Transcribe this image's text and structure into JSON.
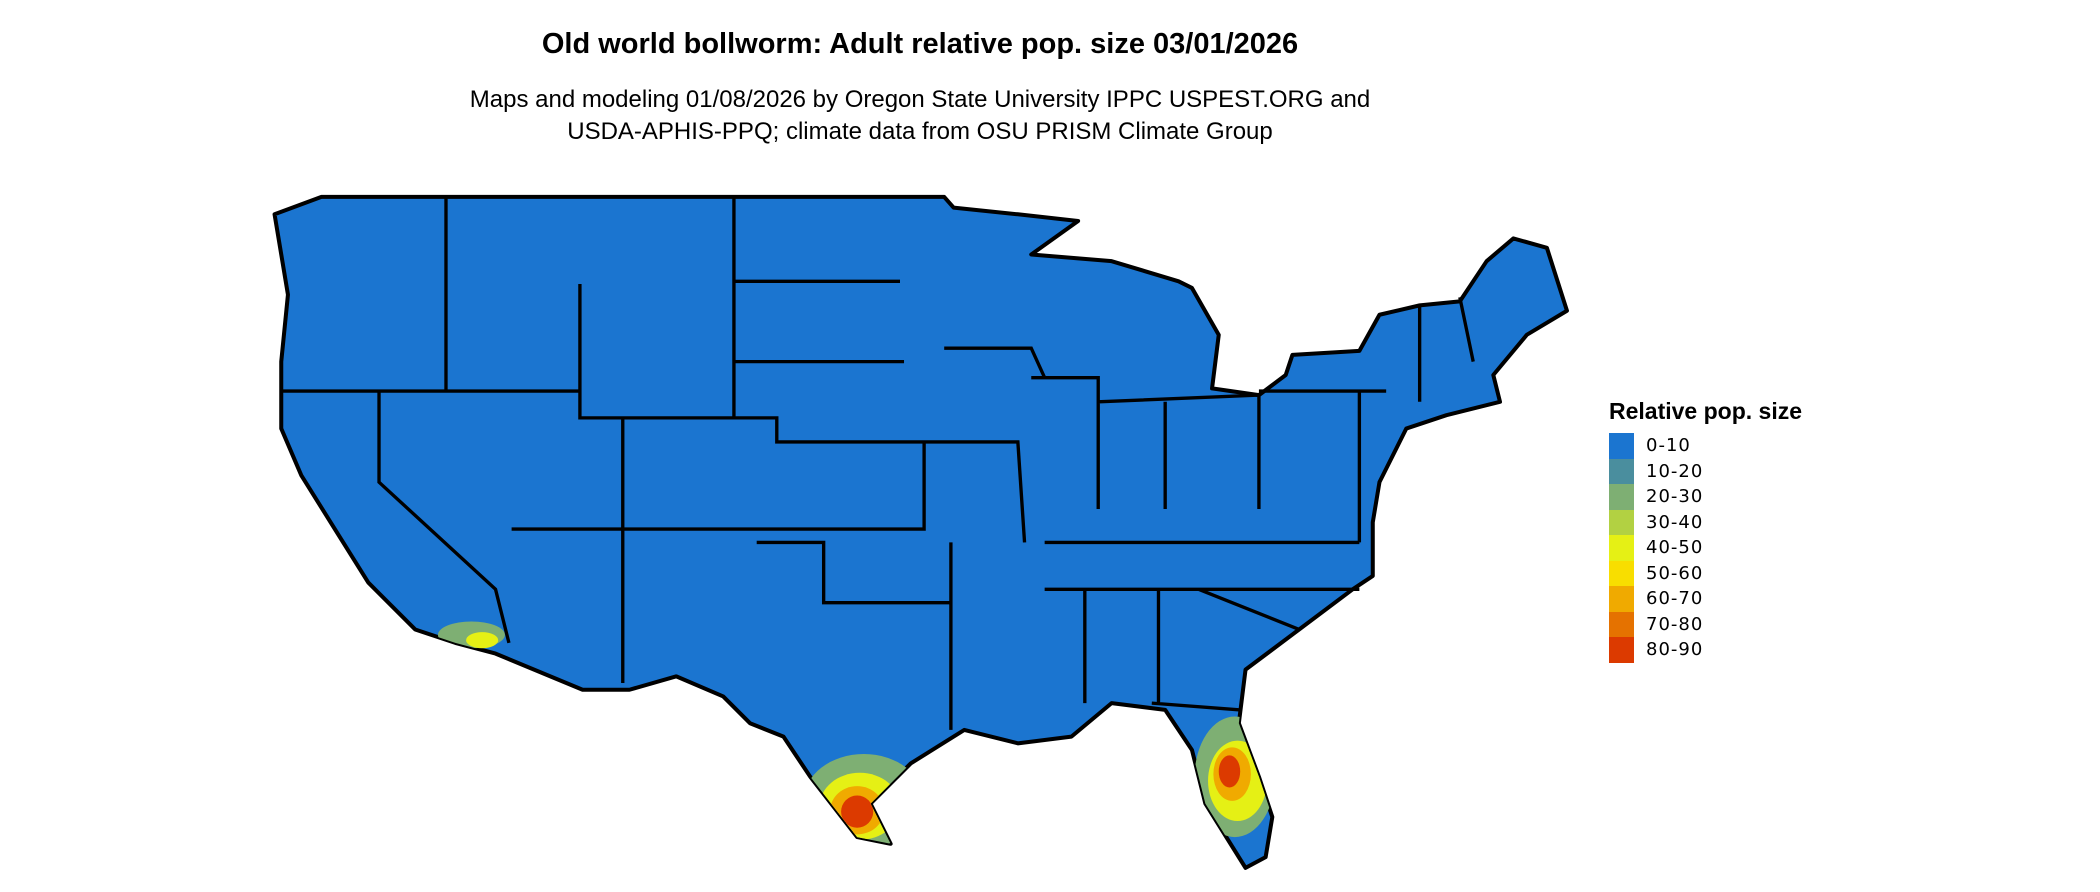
{
  "title": "Old world bollworm: Adult relative pop. size 03/01/2026",
  "subtitle": {
    "line1": "Maps and modeling 01/08/2026 by Oregon State University IPPC USPEST.ORG and",
    "line2": "USDA-APHIS-PPQ; climate data from OSU PRISM Climate Group"
  },
  "legend": {
    "title": "Relative pop. size",
    "items": [
      {
        "label": "0-10",
        "color": "#1B75D0"
      },
      {
        "label": "10-20",
        "color": "#4A8E9E"
      },
      {
        "label": "20-30",
        "color": "#7EAF73"
      },
      {
        "label": "30-40",
        "color": "#B2D142"
      },
      {
        "label": "40-50",
        "color": "#E5F015"
      },
      {
        "label": "50-60",
        "color": "#F8DE00"
      },
      {
        "label": "60-70",
        "color": "#F0AA00"
      },
      {
        "label": "70-80",
        "color": "#E57200"
      },
      {
        "label": "80-90",
        "color": "#DC3A00"
      }
    ]
  },
  "map": {
    "region": "Contiguous United States",
    "base_color": "#1B75D0",
    "border_color": "#000000"
  }
}
